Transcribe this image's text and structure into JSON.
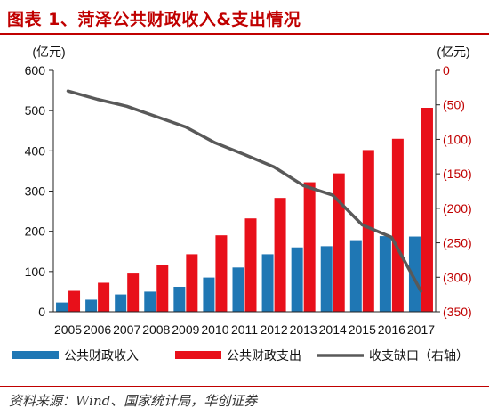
{
  "title": "图表 1、菏泽公共财政收入&支出情况",
  "source": "资料来源：Wind、国家统计局，华创证券",
  "chart_data": {
    "type": "bar",
    "categories": [
      "2005",
      "2006",
      "2007",
      "2008",
      "2009",
      "2010",
      "2011",
      "2012",
      "2013",
      "2014",
      "2015",
      "2016",
      "2017"
    ],
    "y_left_unit": "(亿元)",
    "y_right_unit": "(亿元)",
    "ylim_left": [
      0,
      600
    ],
    "ylim_right": [
      0,
      -350
    ],
    "left_ticks": [
      "0",
      "100",
      "200",
      "300",
      "400",
      "500",
      "600"
    ],
    "right_ticks": [
      "0",
      "(50)",
      "(100)",
      "(150)",
      "(200)",
      "(250)",
      "(300)",
      "(350)"
    ],
    "series": [
      {
        "name": "公共财政收入",
        "kind": "bar",
        "axis": "left",
        "color": "#1F77B4",
        "values": [
          23,
          30,
          43,
          50,
          62,
          85,
          110,
          143,
          160,
          163,
          178,
          188,
          187
        ]
      },
      {
        "name": "公共财政支出",
        "kind": "bar",
        "axis": "left",
        "color": "#E8101A",
        "values": [
          52,
          72,
          95,
          117,
          143,
          190,
          232,
          283,
          322,
          344,
          402,
          430,
          507
        ]
      },
      {
        "name": "收支缺口（右轴）",
        "kind": "line",
        "axis": "right",
        "color": "#595959",
        "values": [
          -30,
          -42,
          -52,
          -67,
          -82,
          -105,
          -122,
          -140,
          -167,
          -181,
          -224,
          -242,
          -320
        ]
      }
    ],
    "legend_position": "bottom",
    "grid": false
  }
}
